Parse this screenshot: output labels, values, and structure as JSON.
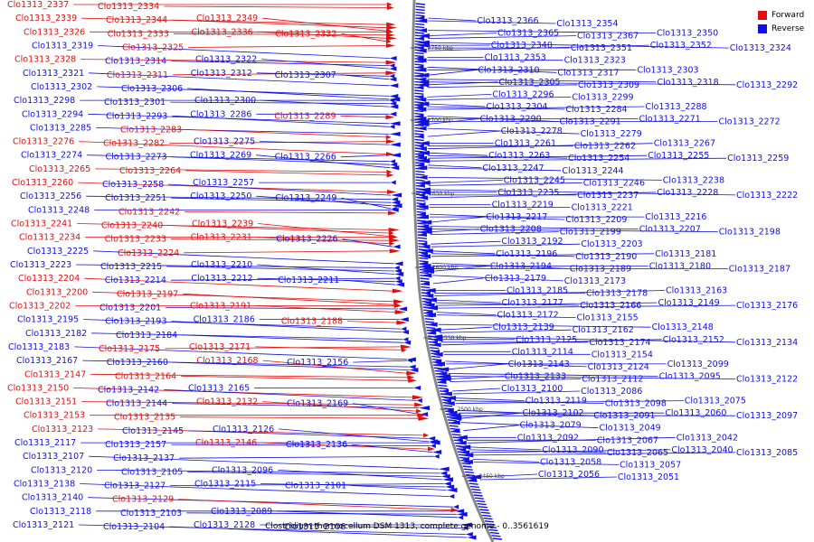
{
  "caption": "Clostridium thermocellum DSM 1313, complete genome - 0..3561619",
  "legend": [
    {
      "label": "Forward",
      "color": "#e01010"
    },
    {
      "label": "Reverse",
      "color": "#1010e0"
    }
  ],
  "colors": {
    "forward": "#e01010",
    "reverse": "#1010e0",
    "backbone": "#888888"
  },
  "bp_markers": [
    "2750 kbp",
    "2700 kbp",
    "2650 kbp",
    "2600 kbp",
    "2550 kbp",
    "2500 kbp",
    "2450 kbp"
  ],
  "left_labels": [
    {
      "t": "Clo1313_2337",
      "f": 1
    },
    {
      "t": "Clo1313_2334",
      "f": 1
    },
    {
      "t": "Clo1313_2339",
      "f": 1
    },
    {
      "t": "Clo1313_2344",
      "f": 1
    },
    {
      "t": "Clo1313_2349",
      "f": 1
    },
    {
      "t": "Clo1313_2326",
      "f": 1
    },
    {
      "t": "Clo1313_2333",
      "f": 1
    },
    {
      "t": "Clo1313_2336",
      "f": 1
    },
    {
      "t": "Clo1313_2332",
      "f": 1
    },
    {
      "t": "Clo1313_2319",
      "f": 0
    },
    {
      "t": "Clo1313_2325",
      "f": 1
    },
    {
      "t": "Clo1313_2328",
      "f": 1
    },
    {
      "t": "Clo1313_2314",
      "f": 0
    },
    {
      "t": "Clo1313_2322",
      "f": 0
    },
    {
      "t": "Clo1313_2321",
      "f": 0
    },
    {
      "t": "Clo1313_2311",
      "f": 1
    },
    {
      "t": "Clo1313_2312",
      "f": 0
    },
    {
      "t": "Clo1313_2307",
      "f": 0
    },
    {
      "t": "Clo1313_2302",
      "f": 0
    },
    {
      "t": "Clo1313_2306",
      "f": 0
    },
    {
      "t": "Clo1313_2298",
      "f": 0
    },
    {
      "t": "Clo1313_2301",
      "f": 0
    },
    {
      "t": "Clo1313_2300",
      "f": 0
    },
    {
      "t": "Clo1313_2294",
      "f": 0
    },
    {
      "t": "Clo1313_2293",
      "f": 0
    },
    {
      "t": "Clo1313_2286",
      "f": 0
    },
    {
      "t": "Clo1313_2289",
      "f": 1
    },
    {
      "t": "Clo1313_2285",
      "f": 0
    },
    {
      "t": "Clo1313_2283",
      "f": 1
    },
    {
      "t": "Clo1313_2276",
      "f": 1
    },
    {
      "t": "Clo1313_2282",
      "f": 1
    },
    {
      "t": "Clo1313_2275",
      "f": 0
    },
    {
      "t": "Clo1313_2274",
      "f": 0
    },
    {
      "t": "Clo1313_2273",
      "f": 0
    },
    {
      "t": "Clo1313_2269",
      "f": 0
    },
    {
      "t": "Clo1313_2266",
      "f": 0
    },
    {
      "t": "Clo1313_2265",
      "f": 1
    },
    {
      "t": "Clo1313_2264",
      "f": 1
    },
    {
      "t": "Clo1313_2260",
      "f": 1
    },
    {
      "t": "Clo1313_2258",
      "f": 0
    },
    {
      "t": "Clo1313_2257",
      "f": 0
    },
    {
      "t": "Clo1313_2256",
      "f": 0
    },
    {
      "t": "Clo1313_2251",
      "f": 0
    },
    {
      "t": "Clo1313_2250",
      "f": 0
    },
    {
      "t": "Clo1313_2249",
      "f": 0
    },
    {
      "t": "Clo1313_2248",
      "f": 0
    },
    {
      "t": "Clo1313_2242",
      "f": 1
    },
    {
      "t": "Clo1313_2241",
      "f": 1
    },
    {
      "t": "Clo1313_2240",
      "f": 1
    },
    {
      "t": "Clo1313_2239",
      "f": 1
    },
    {
      "t": "Clo1313_2234",
      "f": 1
    },
    {
      "t": "Clo1313_2233",
      "f": 1
    },
    {
      "t": "Clo1313_2231",
      "f": 1
    },
    {
      "t": "Clo1313_2226",
      "f": 0
    },
    {
      "t": "Clo1313_2225",
      "f": 0
    },
    {
      "t": "Clo1313_2224",
      "f": 1
    },
    {
      "t": "Clo1313_2223",
      "f": 0
    },
    {
      "t": "Clo1313_2215",
      "f": 0
    },
    {
      "t": "Clo1313_2210",
      "f": 0
    },
    {
      "t": "Clo1313_2204",
      "f": 1
    },
    {
      "t": "Clo1313_2214",
      "f": 0
    },
    {
      "t": "Clo1313_2212",
      "f": 0
    },
    {
      "t": "Clo1313_2211",
      "f": 0
    },
    {
      "t": "Clo1313_2200",
      "f": 1
    },
    {
      "t": "Clo1313_2197",
      "f": 1
    },
    {
      "t": "Clo1313_2202",
      "f": 1
    },
    {
      "t": "Clo1313_2201",
      "f": 0
    },
    {
      "t": "Clo1313_2191",
      "f": 1
    },
    {
      "t": "Clo1313_2195",
      "f": 0
    },
    {
      "t": "Clo1313_2193",
      "f": 0
    },
    {
      "t": "Clo1313_2186",
      "f": 0
    },
    {
      "t": "Clo1313_2188",
      "f": 1
    },
    {
      "t": "Clo1313_2182",
      "f": 0
    },
    {
      "t": "Clo1313_2184",
      "f": 0
    },
    {
      "t": "Clo1313_2183",
      "f": 0
    },
    {
      "t": "Clo1313_2175",
      "f": 1
    },
    {
      "t": "Clo1313_2171",
      "f": 1
    },
    {
      "t": "Clo1313_2167",
      "f": 0
    },
    {
      "t": "Clo1313_2160",
      "f": 0
    },
    {
      "t": "Clo1313_2168",
      "f": 1
    },
    {
      "t": "Clo1313_2156",
      "f": 0
    },
    {
      "t": "Clo1313_2147",
      "f": 1
    },
    {
      "t": "Clo1313_2164",
      "f": 1
    },
    {
      "t": "Clo1313_2150",
      "f": 1
    },
    {
      "t": "Clo1313_2142",
      "f": 0
    },
    {
      "t": "Clo1313_2165",
      "f": 0
    },
    {
      "t": "Clo1313_2151",
      "f": 1
    },
    {
      "t": "Clo1313_2144",
      "f": 0
    },
    {
      "t": "Clo1313_2132",
      "f": 1
    },
    {
      "t": "Clo1313_2169",
      "f": 0
    },
    {
      "t": "Clo1313_2153",
      "f": 1
    },
    {
      "t": "Clo1313_2135",
      "f": 1
    },
    {
      "t": "Clo1313_2123",
      "f": 1
    },
    {
      "t": "Clo1313_2145",
      "f": 0
    },
    {
      "t": "Clo1313_2126",
      "f": 0
    },
    {
      "t": "Clo1313_2117",
      "f": 0
    },
    {
      "t": "Clo1313_2157",
      "f": 0
    },
    {
      "t": "Clo1313_2146",
      "f": 1
    },
    {
      "t": "Clo1313_2136",
      "f": 0
    },
    {
      "t": "Clo1313_2107",
      "f": 0
    },
    {
      "t": "Clo1313_2137",
      "f": 0
    },
    {
      "t": "Clo1313_2120",
      "f": 0
    },
    {
      "t": "Clo1313_2105",
      "f": 0
    },
    {
      "t": "Clo1313_2096",
      "f": 0
    },
    {
      "t": "Clo1313_2138",
      "f": 0
    },
    {
      "t": "Clo1313_2127",
      "f": 0
    },
    {
      "t": "Clo1313_2115",
      "f": 0
    },
    {
      "t": "Clo1313_2101",
      "f": 0
    },
    {
      "t": "Clo1313_2140",
      "f": 0
    },
    {
      "t": "Clo1313_2129",
      "f": 1
    },
    {
      "t": "Clo1313_2118",
      "f": 0
    },
    {
      "t": "Clo1313_2103",
      "f": 0
    },
    {
      "t": "Clo1313_2089",
      "f": 0
    },
    {
      "t": "Clo1313_2121",
      "f": 0
    },
    {
      "t": "Clo1313_2104",
      "f": 0
    },
    {
      "t": "Clo1313_2128",
      "f": 0
    },
    {
      "t": "Clo1313_2106",
      "f": 0
    }
  ],
  "right_labels": [
    "Clo1313_2366",
    "Clo1313_2354",
    "Clo1313_2365",
    "Clo1313_2367",
    "Clo1313_2350",
    "Clo1313_2340",
    "Clo1313_2351",
    "Clo1313_2352",
    "Clo1313_2324",
    "Clo1313_2353",
    "Clo1313_2323",
    "Clo1313_2310",
    "Clo1313_2317",
    "Clo1313_2303",
    "Clo1313_2305",
    "Clo1313_2309",
    "Clo1313_2318",
    "Clo1313_2292",
    "Clo1313_2296",
    "Clo1313_2299",
    "Clo1313_2304",
    "Clo1313_2284",
    "Clo1313_2288",
    "Clo1313_2290",
    "Clo1313_2291",
    "Clo1313_2271",
    "Clo1313_2272",
    "Clo1313_2278",
    "Clo1313_2279",
    "Clo1313_2261",
    "Clo1313_2262",
    "Clo1313_2267",
    "Clo1313_2263",
    "Clo1313_2254",
    "Clo1313_2255",
    "Clo1313_2259",
    "Clo1313_2247",
    "Clo1313_2244",
    "Clo1313_2245",
    "Clo1313_2246",
    "Clo1313_2238",
    "Clo1313_2235",
    "Clo1313_2237",
    "Clo1313_2228",
    "Clo1313_2222",
    "Clo1313_2219",
    "Clo1313_2221",
    "Clo1313_2217",
    "Clo1313_2209",
    "Clo1313_2216",
    "Clo1313_2208",
    "Clo1313_2199",
    "Clo1313_2207",
    "Clo1313_2198",
    "Clo1313_2192",
    "Clo1313_2203",
    "Clo1313_2196",
    "Clo1313_2190",
    "Clo1313_2181",
    "Clo1313_2194",
    "Clo1313_2189",
    "Clo1313_2180",
    "Clo1313_2187",
    "Clo1313_2179",
    "Clo1313_2173",
    "Clo1313_2185",
    "Clo1313_2178",
    "Clo1313_2163",
    "Clo1313_2177",
    "Clo1313_2166",
    "Clo1313_2149",
    "Clo1313_2176",
    "Clo1313_2172",
    "Clo1313_2155",
    "Clo1313_2139",
    "Clo1313_2162",
    "Clo1313_2148",
    "Clo1313_2125",
    "Clo1313_2174",
    "Clo1313_2152",
    "Clo1313_2134",
    "Clo1313_2114",
    "Clo1313_2154",
    "Clo1313_2143",
    "Clo1313_2124",
    "Clo1313_2099",
    "Clo1313_2133",
    "Clo1313_2112",
    "Clo1313_2095",
    "Clo1313_2122",
    "Clo1313_2100",
    "Clo1313_2086",
    "Clo1313_2119",
    "Clo1313_2098",
    "Clo1313_2075",
    "Clo1313_2102",
    "Clo1313_2091",
    "Clo1313_2060",
    "Clo1313_2097",
    "Clo1313_2079",
    "Clo1313_2049",
    "Clo1313_2092",
    "Clo1313_2067",
    "Clo1313_2042",
    "Clo1313_2090",
    "Clo1313_2065",
    "Clo1313_2040",
    "Clo1313_2085",
    "Clo1313_2058",
    "Clo1313_2057",
    "Clo1313_2056",
    "Clo1313_2051"
  ]
}
